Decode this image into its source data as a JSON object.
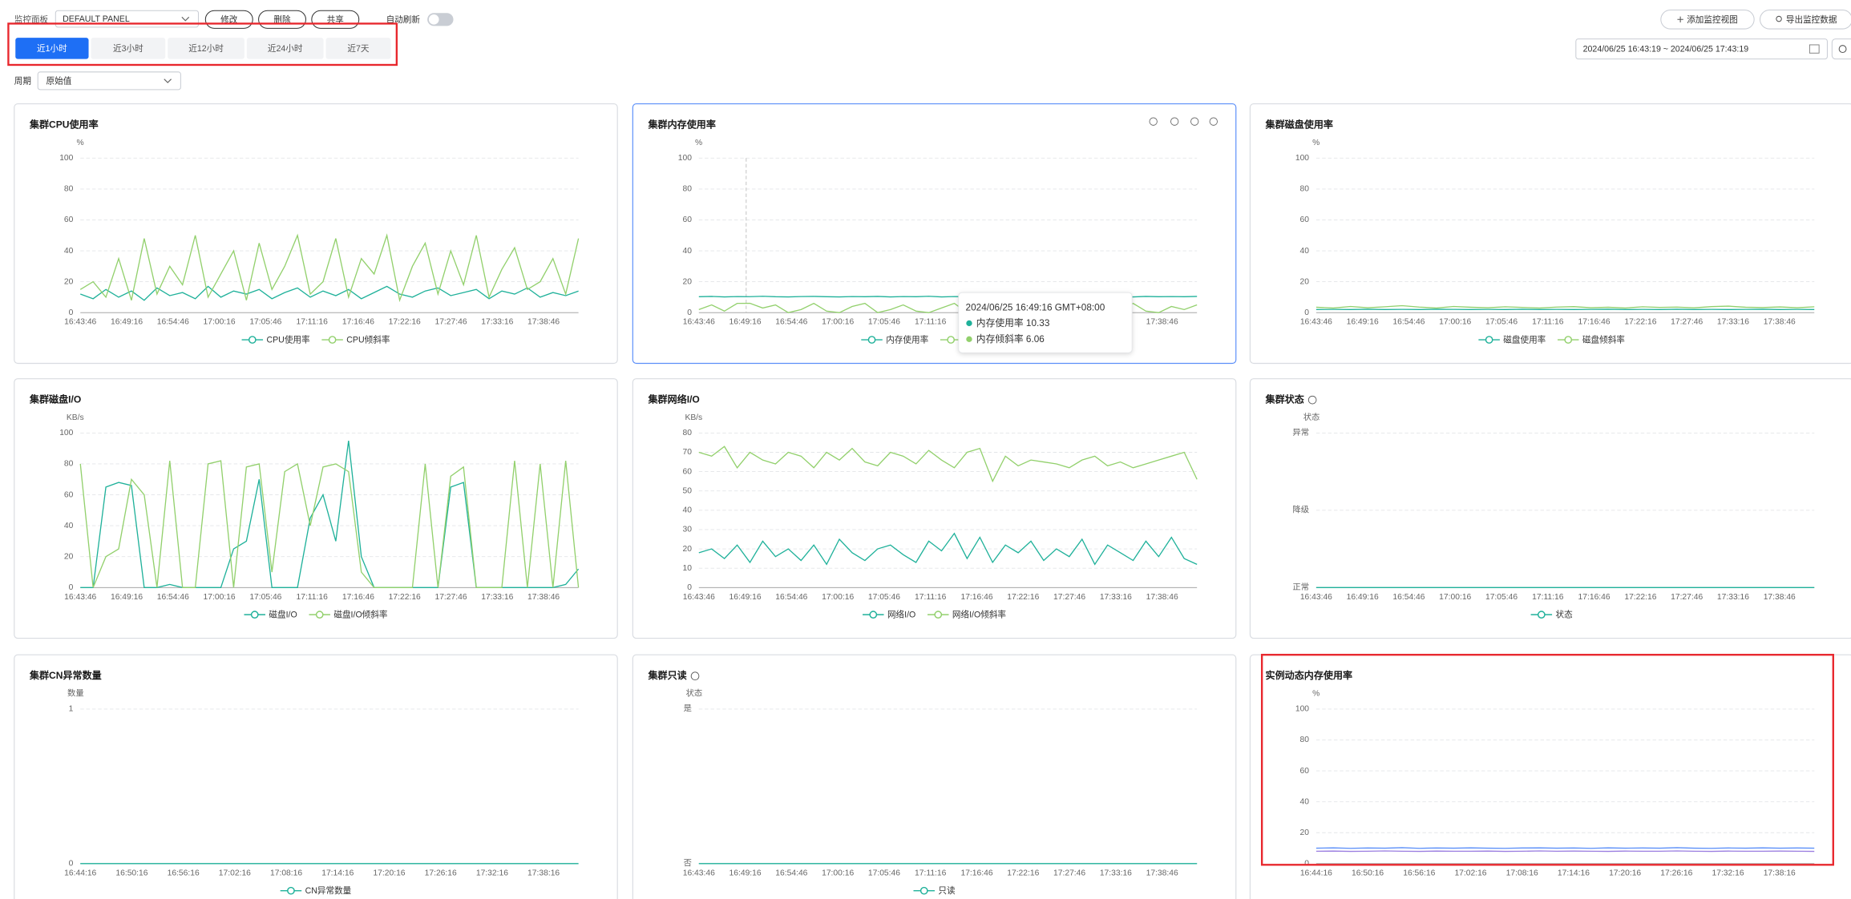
{
  "toolbar": {
    "panel_label": "监控面板",
    "panel_select": "DEFAULT PANEL",
    "buttons": [
      "修改",
      "删除",
      "共享"
    ],
    "auto_refresh": "自动刷新",
    "add_view": "添加监控视图",
    "export": "导出监控数据",
    "tabs": [
      "近1小时",
      "近3小时",
      "近12小时",
      "近24小时",
      "近7天"
    ],
    "active_tab": 0,
    "date_range": "2024/06/25 16:43:19 ~ 2024/06/25 17:43:19",
    "period_label": "周期",
    "period_select": "原始值"
  },
  "chart_data": [
    {
      "type": "line",
      "title": "集群CPU使用率",
      "y_label": "%",
      "ylim": [
        0,
        100
      ],
      "yticks": [
        0,
        20,
        40,
        60,
        80,
        100
      ],
      "grid": true,
      "xticks": [
        "16:43:46",
        "16:49:16",
        "16:54:46",
        "17:00:16",
        "17:05:46",
        "17:11:16",
        "17:16:46",
        "17:22:16",
        "17:27:46",
        "17:33:16",
        "17:38:46"
      ],
      "series": [
        {
          "name": "CPU使用率",
          "color": "#1fb19a",
          "values": [
            12,
            9,
            15,
            10,
            14,
            8,
            16,
            11,
            13,
            9,
            17,
            10,
            14,
            12,
            15,
            9,
            13,
            16,
            10,
            14,
            11,
            15,
            9,
            13,
            17,
            12,
            10,
            14,
            16,
            11,
            13,
            15,
            9,
            14,
            12,
            16,
            10,
            13,
            11,
            14
          ]
        },
        {
          "name": "CPU倾斜率",
          "color": "#92d06c",
          "values": [
            15,
            20,
            10,
            35,
            8,
            48,
            12,
            30,
            18,
            50,
            10,
            25,
            40,
            8,
            45,
            15,
            30,
            50,
            12,
            20,
            48,
            10,
            35,
            25,
            50,
            8,
            30,
            45,
            12,
            40,
            18,
            50,
            10,
            28,
            42,
            15,
            20,
            35,
            12,
            48
          ]
        }
      ]
    },
    {
      "type": "line",
      "title": "集群内存使用率",
      "y_label": "%",
      "ylim": [
        0,
        100
      ],
      "yticks": [
        0,
        20,
        40,
        60,
        80,
        100
      ],
      "grid": true,
      "xticks": [
        "16:43:46",
        "16:49:16",
        "16:54:46",
        "17:00:16",
        "17:05:46",
        "17:11:16",
        "17:16:46",
        "17:22:16",
        "17:27:46",
        "17:33:16",
        "17:38:46"
      ],
      "series": [
        {
          "name": "内存使用率",
          "color": "#1fb19a",
          "values": [
            10.3,
            10.5,
            10.2,
            10.4,
            10.33,
            10.6,
            10.3,
            10.2,
            10.4,
            10.5,
            10.3,
            10.2,
            10.4,
            10.3,
            10.5,
            10.2,
            10.4,
            10.3,
            10.6,
            10.2,
            10.4,
            10.3,
            10.5,
            10.2,
            10.4,
            10.3,
            10.2,
            10.5,
            10.3,
            10.4,
            10.2,
            10.5,
            10.3,
            10.4,
            10.2,
            10.5,
            10.3,
            10.4,
            10.3,
            10.5
          ]
        },
        {
          "name": "内存倾斜率",
          "color": "#92d06c",
          "values": [
            2,
            5,
            1,
            6,
            6.06,
            3,
            5,
            0,
            2,
            6,
            1,
            0,
            4,
            6,
            0,
            2,
            5,
            1,
            0,
            3,
            6,
            0,
            1,
            5,
            2,
            0,
            4,
            6,
            1,
            0,
            3,
            5,
            0,
            2,
            6,
            1,
            0,
            4,
            2,
            5
          ]
        }
      ],
      "tooltip": {
        "title": "2024/06/25 16:49:16 GMT+08:00",
        "items": [
          {
            "name": "内存使用率",
            "value": 10.33
          },
          {
            "name": "内存倾斜率",
            "value": 6.06
          }
        ]
      }
    },
    {
      "type": "line",
      "title": "集群磁盘使用率",
      "y_label": "%",
      "ylim": [
        0,
        100
      ],
      "yticks": [
        0,
        20,
        40,
        60,
        80,
        100
      ],
      "grid": true,
      "xticks": [
        "16:43:46",
        "16:49:16",
        "16:54:46",
        "17:00:16",
        "17:05:46",
        "17:11:16",
        "17:16:46",
        "17:22:16",
        "17:27:46",
        "17:33:16",
        "17:38:46"
      ],
      "series": [
        {
          "name": "磁盘使用率",
          "color": "#1fb19a",
          "values": [
            2,
            2.1,
            2,
            2.2,
            2,
            2.1,
            2,
            2.2,
            2.1,
            2,
            2.1,
            2,
            2.2,
            2,
            2.1,
            2,
            2.1,
            2.2,
            2,
            2.1,
            2,
            2.2,
            2,
            2.1,
            2,
            2.1,
            2.2,
            2,
            2.1,
            2
          ]
        },
        {
          "name": "磁盘倾斜率",
          "color": "#92d06c",
          "values": [
            3.5,
            3,
            4,
            3.2,
            3.8,
            4.5,
            3.6,
            3,
            4,
            3.5,
            3.2,
            3.8,
            3.4,
            3,
            3.6,
            3.9,
            3.2,
            3.5,
            3,
            3.8,
            3.4,
            3.6,
            3.1,
            3.9,
            4.2,
            3.5,
            3.3,
            3.7,
            3.2,
            3.8
          ]
        }
      ]
    },
    {
      "type": "line",
      "title": "集群磁盘I/O",
      "y_label": "KB/s",
      "ylim": [
        0,
        100
      ],
      "yticks": [
        0,
        20,
        40,
        60,
        80,
        100
      ],
      "grid": true,
      "xticks": [
        "16:43:46",
        "16:49:16",
        "16:54:46",
        "17:00:16",
        "17:05:46",
        "17:11:16",
        "17:16:46",
        "17:22:16",
        "17:27:46",
        "17:33:16",
        "17:38:46"
      ],
      "series": [
        {
          "name": "磁盘I/O",
          "color": "#1fb19a",
          "values": [
            0,
            0,
            65,
            68,
            66,
            0,
            0,
            2,
            0,
            0,
            0,
            0,
            25,
            30,
            70,
            0,
            0,
            0,
            45,
            60,
            30,
            95,
            20,
            0,
            0,
            0,
            0,
            0,
            0,
            65,
            68,
            0,
            0,
            0,
            0,
            0,
            0,
            0,
            2,
            12
          ]
        },
        {
          "name": "磁盘I/O倾斜率",
          "color": "#92d06c",
          "values": [
            80,
            0,
            20,
            25,
            70,
            60,
            0,
            82,
            0,
            0,
            80,
            82,
            0,
            78,
            80,
            10,
            75,
            80,
            40,
            78,
            80,
            75,
            10,
            0,
            0,
            0,
            0,
            80,
            0,
            72,
            78,
            0,
            0,
            0,
            82,
            0,
            80,
            0,
            82,
            0
          ]
        }
      ]
    },
    {
      "type": "line",
      "title": "集群网络I/O",
      "y_label": "KB/s",
      "ylim": [
        0,
        80
      ],
      "yticks": [
        0,
        10,
        20,
        30,
        40,
        50,
        60,
        70,
        80
      ],
      "grid": true,
      "xticks": [
        "16:43:46",
        "16:49:16",
        "16:54:46",
        "17:00:16",
        "17:05:46",
        "17:11:16",
        "17:16:46",
        "17:22:16",
        "17:27:46",
        "17:33:16",
        "17:38:46"
      ],
      "series": [
        {
          "name": "网络I/O",
          "color": "#1fb19a",
          "values": [
            18,
            20,
            15,
            22,
            13,
            24,
            16,
            20,
            14,
            22,
            12,
            25,
            18,
            14,
            20,
            22,
            17,
            13,
            24,
            19,
            28,
            15,
            26,
            13,
            22,
            18,
            24,
            14,
            20,
            16,
            25,
            12,
            22,
            18,
            14,
            24,
            16,
            26,
            15,
            12
          ]
        },
        {
          "name": "网络I/O倾斜率",
          "color": "#92d06c",
          "values": [
            70,
            68,
            73,
            62,
            70,
            66,
            64,
            70,
            68,
            62,
            70,
            66,
            72,
            65,
            63,
            70,
            68,
            64,
            71,
            66,
            62,
            70,
            72,
            55,
            68,
            63,
            66,
            65,
            64,
            62,
            66,
            68,
            63,
            65,
            62,
            64,
            66,
            68,
            70,
            56
          ]
        }
      ]
    },
    {
      "type": "line",
      "title": "集群状态",
      "help": true,
      "y_label": "状态",
      "ylim": [
        0,
        2
      ],
      "yticks": [
        {
          "value": 0,
          "label": "正常"
        },
        {
          "value": 1,
          "label": "降级"
        },
        {
          "value": 2,
          "label": "异常"
        }
      ],
      "grid": true,
      "xticks": [
        "16:43:46",
        "16:49:16",
        "16:54:46",
        "17:00:16",
        "17:05:46",
        "17:11:16",
        "17:16:46",
        "17:22:16",
        "17:27:46",
        "17:33:16",
        "17:38:46"
      ],
      "series": [
        {
          "name": "状态",
          "color": "#1fb19a",
          "values": [
            0,
            0,
            0,
            0,
            0,
            0,
            0,
            0,
            0,
            0,
            0,
            0,
            0,
            0,
            0,
            0,
            0,
            0,
            0,
            0
          ]
        }
      ]
    },
    {
      "type": "line",
      "title": "集群CN异常数量",
      "y_label": "数量",
      "ylim": [
        0,
        1
      ],
      "yticks": [
        0,
        1
      ],
      "grid": true,
      "xticks": [
        "16:44:16",
        "16:50:16",
        "16:56:16",
        "17:02:16",
        "17:08:16",
        "17:14:16",
        "17:20:16",
        "17:26:16",
        "17:32:16",
        "17:38:16"
      ],
      "series": [
        {
          "name": "CN异常数量",
          "color": "#1fb19a",
          "values": [
            0,
            0,
            0,
            0,
            0,
            0,
            0,
            0,
            0,
            0,
            0,
            0,
            0,
            0,
            0,
            0,
            0,
            0,
            0,
            0
          ]
        }
      ]
    },
    {
      "type": "line",
      "title": "集群只读",
      "help": true,
      "y_label": "状态",
      "ylim": [
        0,
        1
      ],
      "yticks": [
        {
          "value": 0,
          "label": "否"
        },
        {
          "value": 1,
          "label": "是"
        }
      ],
      "grid": true,
      "xticks": [
        "16:43:46",
        "16:49:16",
        "16:54:46",
        "17:00:16",
        "17:05:46",
        "17:11:16",
        "17:16:46",
        "17:22:16",
        "17:27:46",
        "17:33:16",
        "17:38:46"
      ],
      "series": [
        {
          "name": "只读",
          "color": "#1fb19a",
          "values": [
            0,
            0,
            0,
            0,
            0,
            0,
            0,
            0,
            0,
            0,
            0,
            0,
            0,
            0,
            0,
            0,
            0,
            0,
            0,
            0
          ]
        }
      ]
    },
    {
      "type": "line",
      "title": "实例动态内存使用率",
      "y_label": "%",
      "ylim": [
        0,
        100
      ],
      "yticks": [
        0,
        20,
        40,
        60,
        80,
        100
      ],
      "grid": true,
      "xticks": [
        "16:44:16",
        "16:50:16",
        "16:56:16",
        "17:02:16",
        "17:08:16",
        "17:14:16",
        "17:20:16",
        "17:26:16",
        "17:32:16",
        "17:38:16"
      ],
      "series": [
        {
          "color": "#5b8ff9",
          "values": [
            10,
            10.2,
            9.9,
            10.1,
            10,
            10.3,
            9.9,
            10.1,
            10,
            10.2,
            10,
            9.9,
            10.1,
            10.2,
            10,
            10.1,
            9.9,
            10.2,
            10,
            10.1,
            10,
            10.3,
            10,
            9.9,
            10.1,
            10,
            10.2,
            10,
            10.1,
            10
          ]
        },
        {
          "color": "#9a7de0",
          "values": [
            8,
            8.1,
            7.9,
            8,
            8.2,
            8,
            7.9,
            8.1,
            8,
            8,
            8.1,
            7.9,
            8,
            8.2,
            8,
            8.1,
            8,
            7.9,
            8.1,
            8,
            8,
            8.2,
            8,
            7.9,
            8.1,
            8,
            8,
            8.1,
            8,
            7.9
          ]
        }
      ]
    }
  ]
}
